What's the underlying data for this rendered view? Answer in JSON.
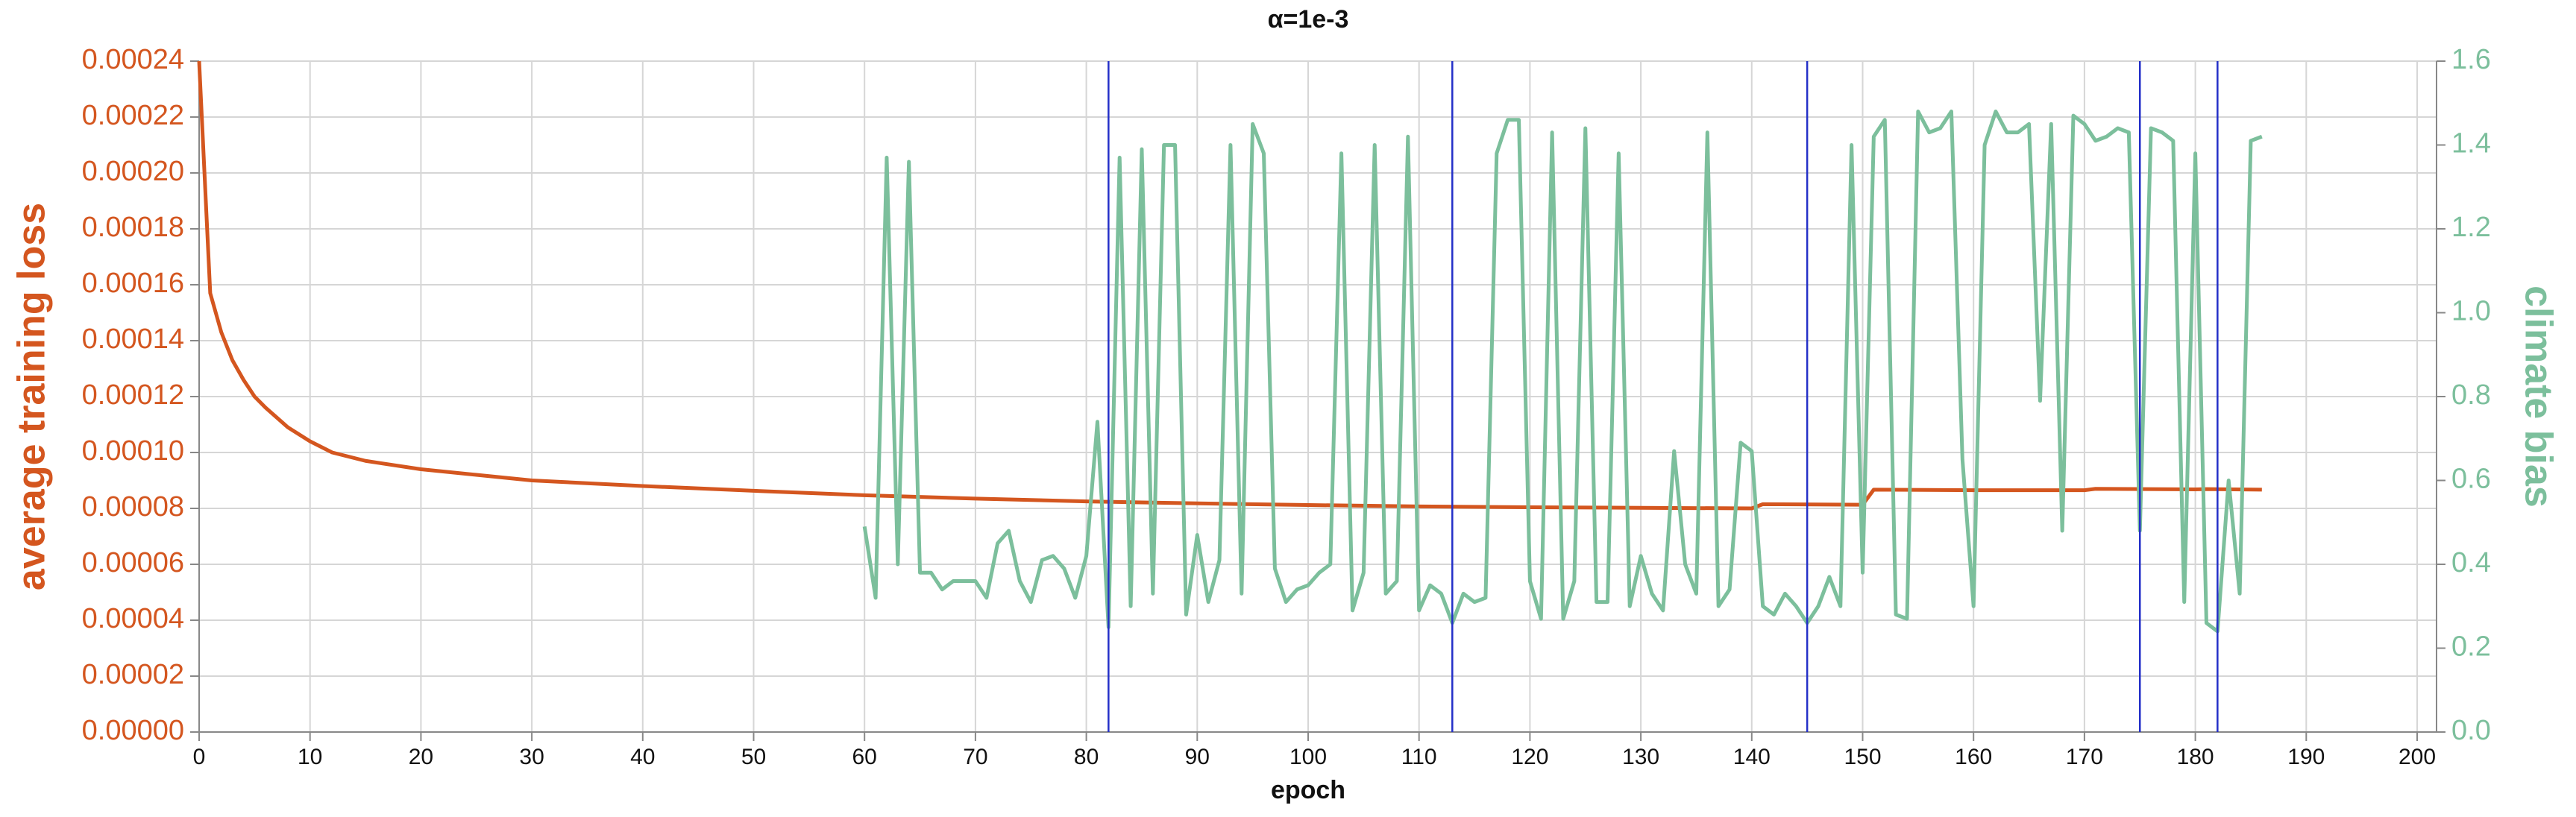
{
  "chart_data": {
    "type": "line",
    "title": "α=1e-3",
    "x_label": "epoch",
    "y_label": "average training loss",
    "y2_label": "climate bias",
    "grid": true,
    "xlim": [
      0,
      200
    ],
    "xticks": [
      0,
      10,
      20,
      30,
      40,
      50,
      60,
      70,
      80,
      90,
      100,
      110,
      120,
      130,
      140,
      150,
      160,
      170,
      180,
      190,
      200
    ],
    "ylim": [
      0,
      0.00024
    ],
    "yticks": [
      {
        "value": 0,
        "label": "0.00000"
      },
      {
        "value": 2e-05,
        "label": "0.00002"
      },
      {
        "value": 4e-05,
        "label": "0.00004"
      },
      {
        "value": 6e-05,
        "label": "0.00006"
      },
      {
        "value": 8e-05,
        "label": "0.00008"
      },
      {
        "value": 0.0001,
        "label": "0.00010"
      },
      {
        "value": 0.00012,
        "label": "0.00012"
      },
      {
        "value": 0.00014,
        "label": "0.00014"
      },
      {
        "value": 0.00016,
        "label": "0.00016"
      },
      {
        "value": 0.00018,
        "label": "0.00018"
      },
      {
        "value": 0.0002,
        "label": "0.00020"
      },
      {
        "value": 0.00022,
        "label": "0.00022"
      },
      {
        "value": 0.00024,
        "label": "0.00024"
      }
    ],
    "y2lim": [
      0,
      1.6
    ],
    "y2ticks": [
      {
        "value": 0,
        "label": "0.0"
      },
      0.2,
      0.4,
      0.6,
      0.8,
      {
        "value": 1,
        "label": "1.0"
      },
      1.2,
      1.4,
      1.6
    ],
    "y_color": "#d4561f",
    "y2_color": "#7cbf9c",
    "vlines": [
      82,
      113,
      145,
      175,
      182
    ],
    "vline_color": "#2430c8",
    "series": [
      {
        "color": "#d4561f",
        "axis": "y",
        "x": [
          0,
          1,
          2,
          3,
          4,
          5,
          6,
          8,
          10,
          12,
          15,
          20,
          25,
          30,
          40,
          50,
          60,
          70,
          80,
          90,
          100,
          110,
          120,
          130,
          140,
          141,
          150,
          151,
          160,
          170,
          171,
          180,
          181,
          186
        ],
        "values": [
          0.00024,
          0.000157,
          0.000143,
          0.000133,
          0.000126,
          0.00012,
          0.000116,
          0.000109,
          0.000104,
          0.0001,
          9.7e-05,
          9.4e-05,
          9.2e-05,
          9e-05,
          8.8e-05,
          8.63e-05,
          8.47e-05,
          8.35e-05,
          8.25e-05,
          8.18e-05,
          8.12e-05,
          8.07e-05,
          8.04e-05,
          8.02e-05,
          8e-05,
          8.15e-05,
          8.13e-05,
          8.67e-05,
          8.65e-05,
          8.65e-05,
          8.7e-05,
          8.68e-05,
          8.69e-05,
          8.67e-05
        ]
      },
      {
        "color": "#7cbf9c",
        "axis": "y2",
        "x": [
          60,
          61,
          62,
          63,
          64,
          65,
          66,
          67,
          68,
          69,
          70,
          71,
          72,
          73,
          74,
          75,
          76,
          77,
          78,
          79,
          80,
          81,
          82,
          83,
          84,
          85,
          86,
          87,
          88,
          89,
          90,
          91,
          92,
          93,
          94,
          95,
          96,
          97,
          98,
          99,
          100,
          101,
          102,
          103,
          104,
          105,
          106,
          107,
          108,
          109,
          110,
          111,
          112,
          113,
          114,
          115,
          116,
          117,
          118,
          119,
          120,
          121,
          122,
          123,
          124,
          125,
          126,
          127,
          128,
          129,
          130,
          131,
          132,
          133,
          134,
          135,
          136,
          137,
          138,
          139,
          140,
          141,
          142,
          143,
          144,
          145,
          146,
          147,
          148,
          149,
          150,
          151,
          152,
          153,
          154,
          155,
          156,
          157,
          158,
          159,
          160,
          161,
          162,
          163,
          164,
          165,
          166,
          167,
          168,
          169,
          170,
          171,
          172,
          173,
          174,
          175,
          176,
          177,
          178,
          179,
          180,
          181,
          182,
          183,
          184,
          185,
          186
        ],
        "values": [
          0.49,
          0.32,
          1.37,
          0.4,
          1.36,
          0.38,
          0.38,
          0.34,
          0.36,
          0.36,
          0.36,
          0.32,
          0.45,
          0.48,
          0.36,
          0.31,
          0.41,
          0.42,
          0.39,
          0.32,
          0.42,
          0.74,
          0.25,
          1.37,
          0.3,
          1.39,
          0.33,
          1.4,
          1.4,
          0.28,
          0.47,
          0.31,
          0.41,
          1.4,
          0.33,
          1.45,
          1.38,
          0.39,
          0.31,
          0.34,
          0.35,
          0.38,
          0.4,
          1.38,
          0.29,
          0.38,
          1.4,
          0.33,
          0.36,
          1.42,
          0.29,
          0.35,
          0.33,
          0.26,
          0.33,
          0.31,
          0.32,
          1.38,
          1.46,
          1.46,
          0.36,
          0.27,
          1.43,
          0.27,
          0.36,
          1.44,
          0.31,
          0.31,
          1.38,
          0.3,
          0.42,
          0.33,
          0.29,
          0.67,
          0.4,
          0.33,
          1.43,
          0.3,
          0.34,
          0.69,
          0.67,
          0.3,
          0.28,
          0.33,
          0.3,
          0.26,
          0.3,
          0.37,
          0.3,
          1.4,
          0.38,
          1.42,
          1.46,
          0.28,
          0.27,
          1.48,
          1.43,
          1.44,
          1.48,
          0.65,
          0.3,
          1.4,
          1.48,
          1.43,
          1.43,
          1.45,
          0.79,
          1.45,
          0.48,
          1.47,
          1.45,
          1.41,
          1.42,
          1.44,
          1.43,
          0.48,
          1.44,
          1.43,
          1.41,
          0.31,
          1.38,
          0.26,
          0.24,
          0.6,
          0.33,
          1.41,
          1.42
        ]
      }
    ]
  }
}
